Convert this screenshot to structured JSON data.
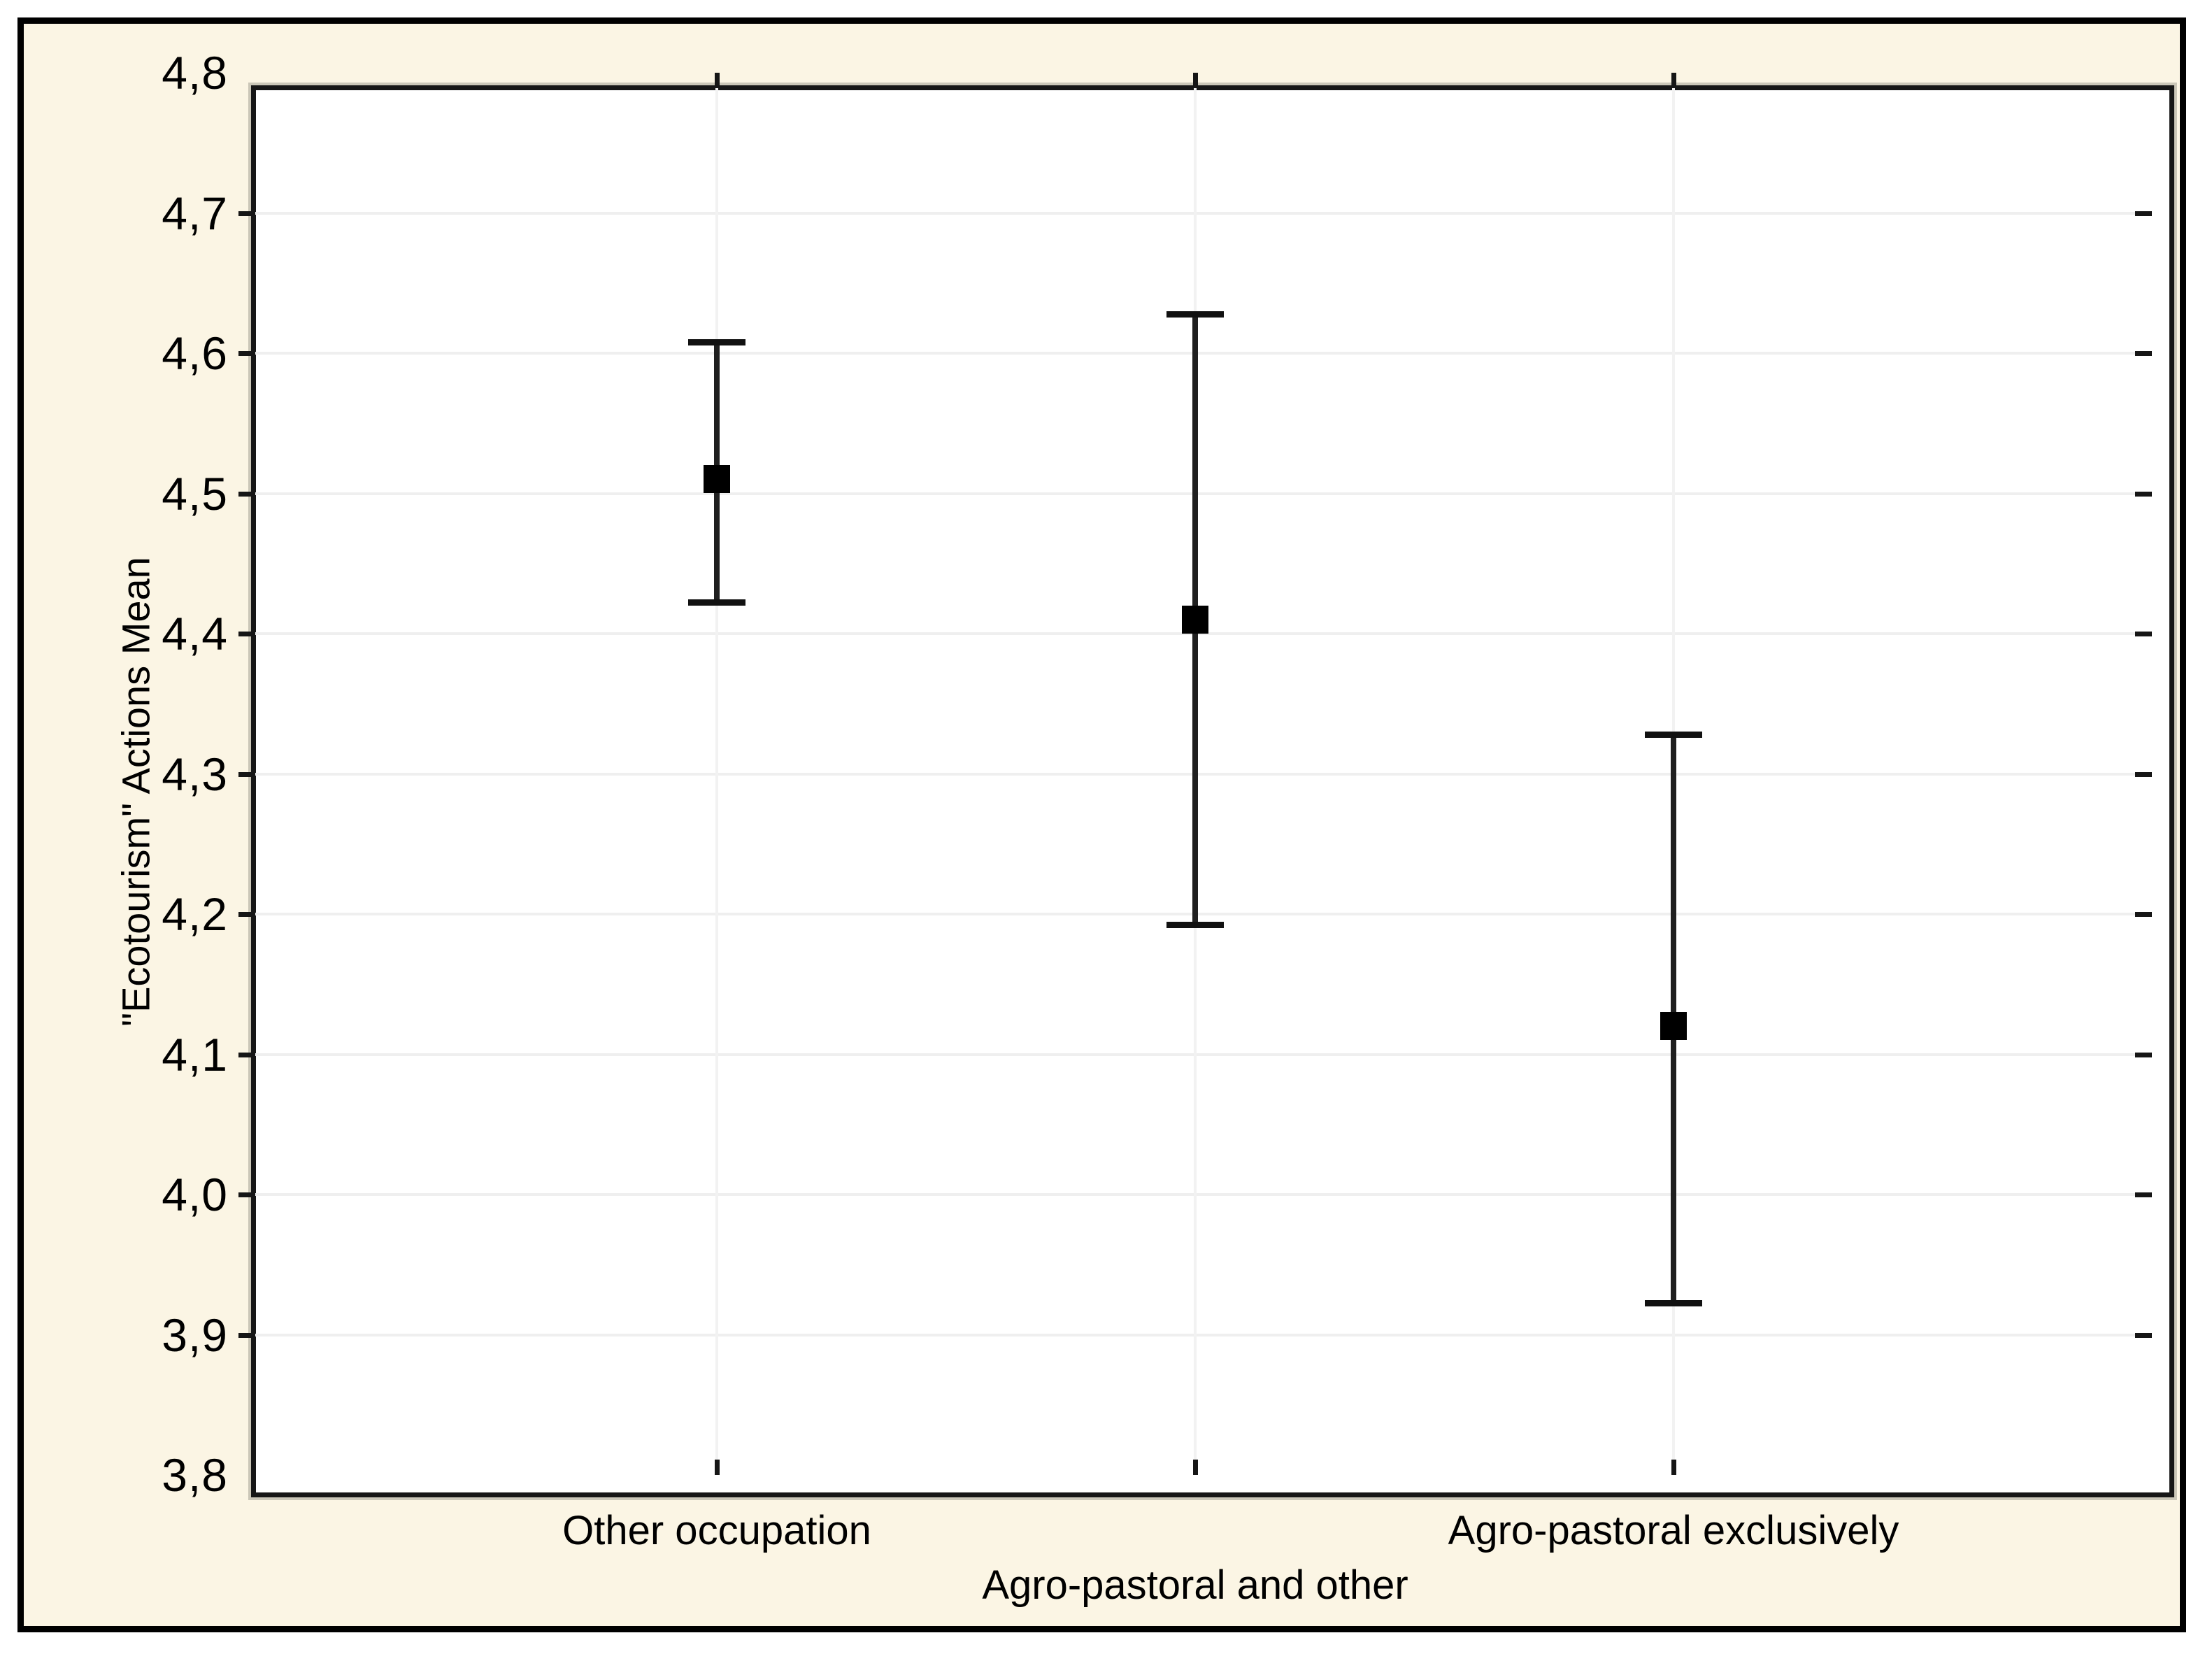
{
  "chart_data": {
    "type": "scatter",
    "subtype": "means_with_error_bars",
    "title": "",
    "ylabel": "\"Ecotourism\" Actions Mean",
    "xlabel": "",
    "categories": [
      "Other occupation",
      "Agro-pastoral and other",
      "Agro-pastoral exclusively"
    ],
    "category_label_rows": [
      1,
      2,
      1
    ],
    "series": [
      {
        "name": "\"Ecotourism\" Actions Mean",
        "means": [
          4.51,
          4.41,
          4.12
        ],
        "ci_lower": [
          4.42,
          4.19,
          3.92
        ],
        "ci_upper": [
          4.61,
          4.63,
          4.33
        ]
      }
    ],
    "ylim": [
      3.8,
      4.8
    ],
    "ytick_step": 0.1,
    "ytick_labels": [
      "4,8",
      "4,7",
      "4,6",
      "4,5",
      "4,4",
      "4,3",
      "4,2",
      "4,1",
      "4,0",
      "3,9",
      "3,8"
    ],
    "decimal_separator": ",",
    "grid": true,
    "legend": false,
    "marker": "filled-square"
  },
  "colors": {
    "page_background": "#ffffff",
    "frame_background": "#fbf5e4",
    "plot_background": "#ffffff",
    "frame_border": "#000000",
    "axis_box": "#161616",
    "grid": "#efefef",
    "error_bar": "#1f1f1f",
    "marker": "#000000",
    "text": "#000000"
  }
}
